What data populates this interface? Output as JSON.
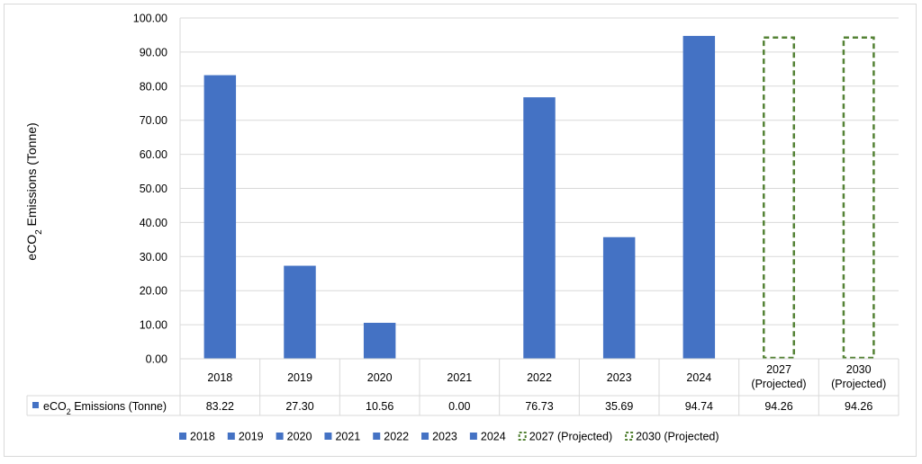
{
  "chart_data": {
    "type": "bar",
    "ylabel": "eCO",
    "ylabel_sub": "2",
    "ylabel_suffix": " Emissions (Tonne)",
    "ylim": [
      0,
      100
    ],
    "ytick_step": 10,
    "ytick_labels": [
      "0.00",
      "10.00",
      "20.00",
      "30.00",
      "40.00",
      "50.00",
      "60.00",
      "70.00",
      "80.00",
      "90.00",
      "100.00"
    ],
    "grid": true,
    "categories": [
      {
        "label": "2018",
        "sublabel": "",
        "value": 83.22,
        "display": "83.22",
        "projected": false
      },
      {
        "label": "2019",
        "sublabel": "",
        "value": 27.3,
        "display": "27.30",
        "projected": false
      },
      {
        "label": "2020",
        "sublabel": "",
        "value": 10.56,
        "display": "10.56",
        "projected": false
      },
      {
        "label": "2021",
        "sublabel": "",
        "value": 0.0,
        "display": "0.00",
        "projected": false
      },
      {
        "label": "2022",
        "sublabel": "",
        "value": 76.73,
        "display": "76.73",
        "projected": false
      },
      {
        "label": "2023",
        "sublabel": "",
        "value": 35.69,
        "display": "35.69",
        "projected": false
      },
      {
        "label": "2024",
        "sublabel": "",
        "value": 94.74,
        "display": "94.74",
        "projected": false
      },
      {
        "label": "2027",
        "sublabel": "(Projected)",
        "value": 94.26,
        "display": "94.26",
        "projected": true
      },
      {
        "label": "2030",
        "sublabel": "(Projected)",
        "value": 94.26,
        "display": "94.26",
        "projected": true
      }
    ],
    "table_series_label_prefix": "eCO",
    "table_series_label_sub": "2",
    "table_series_label_suffix": " Emissions (Tonne)",
    "legend": {
      "placement": "bottom",
      "items": [
        "2018",
        "2019",
        "2020",
        "2021",
        "2022",
        "2023",
        "2024",
        "2027 (Projected)",
        "2030 (Projected)"
      ]
    },
    "colors": {
      "actual": "#4472c4",
      "projected_outline": "#548235",
      "grid": "#d9d9d9"
    }
  }
}
